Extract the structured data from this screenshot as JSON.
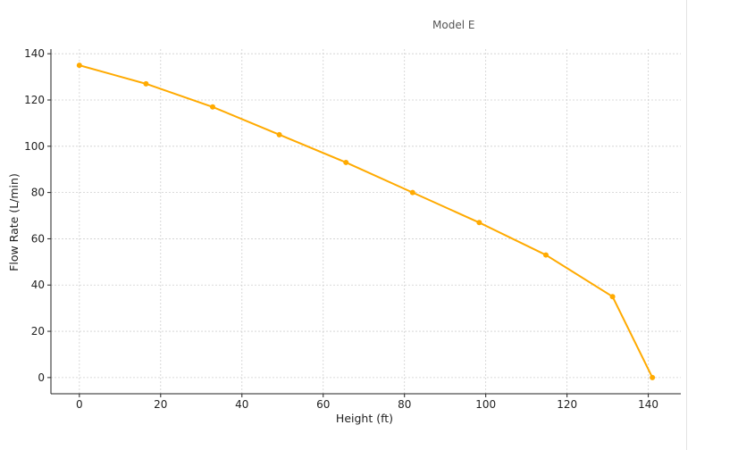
{
  "chart_data": {
    "type": "line",
    "title": "Model E",
    "xlabel": "Height (ft)",
    "ylabel": "Flow Rate (L/min)",
    "xlim": [
      -7,
      148
    ],
    "ylim": [
      -7,
      142
    ],
    "x_ticks": [
      0,
      20,
      40,
      60,
      80,
      100,
      120,
      140
    ],
    "y_ticks": [
      0,
      20,
      40,
      60,
      80,
      100,
      120,
      140
    ],
    "grid": true,
    "series": [
      {
        "color": "#FFAA00",
        "x": [
          0,
          16.4,
          32.8,
          49.2,
          65.6,
          82,
          98.4,
          114.8,
          131.2,
          141
        ],
        "y": [
          135,
          127,
          117,
          105,
          93,
          80,
          67,
          53,
          35,
          0
        ]
      }
    ]
  }
}
